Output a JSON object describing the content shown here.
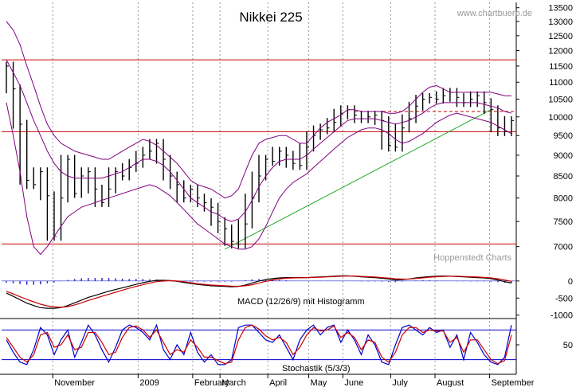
{
  "chart_data": [
    {
      "type": "line",
      "title": "Nikkei 225",
      "watermark": "www.chartbuero.de",
      "source": "Hoppenstedt Charts",
      "yscale": "log",
      "ylim": [
        6550,
        13700
      ],
      "y_ticks": [
        7000,
        7500,
        8000,
        8500,
        9000,
        9500,
        10000,
        10500,
        11000,
        11500,
        12000,
        12500,
        13000,
        13500
      ],
      "y_tick_labels": [
        "7000",
        "7500",
        "8000",
        "8500",
        "9000",
        "9500",
        "10000",
        "10500",
        "11000",
        "11500",
        "12000",
        "12500",
        "13000",
        "13500"
      ],
      "horizontal_lines": [
        {
          "value": 11700,
          "color": "#cc0000",
          "style": "solid"
        },
        {
          "value": 9600,
          "color": "#cc0000",
          "style": "solid"
        },
        {
          "value": 7050,
          "color": "#cc0000",
          "style": "solid"
        },
        {
          "value": 10150,
          "color": "#cc0000",
          "style": "dashed",
          "start_week": 51
        }
      ],
      "trendline": {
        "color": "#22aa22",
        "from": {
          "week": 32,
          "value": 6950
        },
        "to": {
          "week": 71,
          "value": 10200
        }
      },
      "series": [
        {
          "kind": "price-bars",
          "color": "#000000",
          "values": [
            11500,
            10800,
            9800,
            8400,
            8300,
            8600,
            8050,
            7200,
            8000,
            8900,
            8100,
            8500,
            8600,
            8200,
            7900,
            8200,
            8600,
            8500,
            8700,
            8800,
            9000,
            9100,
            9300,
            8900,
            8500,
            8300,
            8000,
            8200,
            8000,
            7900,
            7800,
            7500,
            7350,
            7100,
            7050,
            7450,
            8000,
            8500,
            8900,
            8850,
            9100,
            9000,
            8800,
            8750,
            9200,
            9500,
            9650,
            9700,
            9850,
            10100,
            10200,
            10050,
            9950,
            10000,
            10050,
            9900,
            9250,
            9200,
            9700,
            9950,
            10300,
            10500,
            10550,
            10500,
            10600,
            10700,
            10550,
            10400,
            10500,
            10600,
            10400,
            10200,
            9700,
            9600,
            9900
          ]
        },
        {
          "kind": "bollinger-upper",
          "color": "#800080",
          "values": [
            13000,
            12700,
            12200,
            11500,
            10900,
            10300,
            9800,
            9500,
            9300,
            9200,
            9100,
            9050,
            9000,
            8950,
            8900,
            8900,
            9000,
            9100,
            9200,
            9300,
            9400,
            9350,
            9250,
            9100,
            8950,
            8800,
            8600,
            8400,
            8300,
            8250,
            8200,
            8100,
            8000,
            8050,
            8200,
            8600,
            9000,
            9300,
            9400,
            9450,
            9500,
            9500,
            9400,
            9300,
            9300,
            9500,
            9700,
            9850,
            9950,
            10050,
            10200,
            10200,
            10150,
            10150,
            10150,
            10150,
            10100,
            10100,
            10150,
            10300,
            10500,
            10700,
            10850,
            10900,
            10800,
            10700,
            10700,
            10700,
            10700,
            10700,
            10700,
            10700,
            10650,
            10600,
            10600
          ]
        },
        {
          "kind": "bollinger-middle",
          "color": "#800080",
          "values": [
            11700,
            11300,
            10900,
            10400,
            9900,
            9500,
            9100,
            8800,
            8600,
            8500,
            8450,
            8450,
            8450,
            8450,
            8450,
            8500,
            8550,
            8600,
            8700,
            8800,
            8900,
            8900,
            8850,
            8750,
            8600,
            8400,
            8200,
            8000,
            7900,
            7800,
            7700,
            7650,
            7550,
            7500,
            7550,
            7700,
            7950,
            8250,
            8500,
            8700,
            8850,
            8900,
            8900,
            8900,
            9000,
            9150,
            9300,
            9450,
            9600,
            9750,
            9900,
            9950,
            9950,
            9950,
            9950,
            9900,
            9850,
            9800,
            9850,
            9900,
            10000,
            10100,
            10250,
            10350,
            10400,
            10400,
            10400,
            10400,
            10400,
            10400,
            10350,
            10300,
            10250,
            10150,
            10100
          ]
        },
        {
          "kind": "bollinger-lower",
          "color": "#800080",
          "values": [
            10400,
            9500,
            8600,
            7600,
            7000,
            6850,
            7000,
            7200,
            7400,
            7600,
            7700,
            7800,
            7850,
            7900,
            7950,
            8000,
            8050,
            8100,
            8150,
            8200,
            8250,
            8300,
            8250,
            8150,
            8050,
            7900,
            7750,
            7600,
            7450,
            7350,
            7250,
            7150,
            7050,
            7000,
            6950,
            6950,
            7000,
            7150,
            7400,
            7700,
            8000,
            8200,
            8350,
            8450,
            8550,
            8700,
            8850,
            9000,
            9150,
            9300,
            9450,
            9550,
            9650,
            9700,
            9700,
            9650,
            9550,
            9400,
            9300,
            9350,
            9450,
            9550,
            9700,
            9850,
            9950,
            10050,
            10100,
            10050,
            10000,
            9950,
            9900,
            9850,
            9750,
            9650,
            9550
          ]
        }
      ]
    },
    {
      "type": "line",
      "title": "MACD (12/26/9) mit Histogramm",
      "ylim": [
        -1100,
        300
      ],
      "y_ticks": [
        0,
        -500,
        -1000
      ],
      "y_tick_labels": [
        "0",
        "-500",
        "-1000"
      ],
      "series": [
        {
          "kind": "macd",
          "color": "#000000",
          "values": [
            -350,
            -450,
            -550,
            -650,
            -720,
            -780,
            -800,
            -800,
            -780,
            -720,
            -640,
            -560,
            -480,
            -420,
            -360,
            -300,
            -250,
            -200,
            -150,
            -100,
            -50,
            -10,
            20,
            20,
            10,
            -10,
            -40,
            -70,
            -100,
            -120,
            -140,
            -150,
            -160,
            -170,
            -160,
            -120,
            -60,
            0,
            40,
            70,
            90,
            100,
            100,
            100,
            100,
            110,
            120,
            130,
            140,
            150,
            150,
            140,
            120,
            110,
            100,
            80,
            60,
            30,
            40,
            60,
            90,
            110,
            130,
            140,
            145,
            140,
            130,
            120,
            110,
            100,
            90,
            70,
            30,
            -20,
            -60
          ]
        },
        {
          "kind": "signal",
          "color": "#cc0000",
          "values": [
            -300,
            -380,
            -460,
            -540,
            -610,
            -680,
            -730,
            -760,
            -770,
            -750,
            -700,
            -640,
            -570,
            -510,
            -450,
            -390,
            -330,
            -270,
            -210,
            -160,
            -110,
            -60,
            -20,
            0,
            10,
            0,
            -20,
            -50,
            -80,
            -100,
            -120,
            -130,
            -140,
            -150,
            -155,
            -140,
            -110,
            -60,
            -10,
            30,
            60,
            80,
            90,
            95,
            100,
            105,
            110,
            120,
            130,
            140,
            145,
            145,
            135,
            125,
            115,
            100,
            85,
            65,
            55,
            60,
            75,
            90,
            110,
            125,
            135,
            140,
            138,
            132,
            125,
            115,
            105,
            90,
            65,
            30,
            -10
          ]
        },
        {
          "kind": "histogram",
          "color": "#2f2fcc",
          "values": [
            -50,
            -70,
            -90,
            -110,
            -110,
            -100,
            -70,
            -40,
            -10,
            30,
            60,
            80,
            90,
            90,
            90,
            90,
            80,
            70,
            60,
            60,
            60,
            50,
            40,
            20,
            0,
            -10,
            -20,
            -20,
            -20,
            -20,
            -20,
            -20,
            -20,
            -20,
            -5,
            20,
            50,
            60,
            50,
            40,
            30,
            20,
            10,
            5,
            0,
            5,
            10,
            10,
            10,
            10,
            5,
            -5,
            -15,
            -15,
            -15,
            -20,
            -25,
            -35,
            -15,
            0,
            15,
            20,
            20,
            15,
            10,
            0,
            -8,
            -12,
            -15,
            -15,
            -15,
            -20,
            -35,
            -50,
            -50
          ]
        }
      ]
    },
    {
      "type": "line",
      "title": "Stochastik (5/3/3)",
      "ylim": [
        0,
        100
      ],
      "y_ticks": [
        50
      ],
      "y_tick_labels": [
        "50"
      ],
      "horizontal_lines": [
        {
          "value": 80,
          "color": "#0000cc"
        },
        {
          "value": 20,
          "color": "#0000cc"
        }
      ],
      "series": [
        {
          "kind": "stoch-k",
          "color": "#0000cc",
          "values": [
            60,
            35,
            15,
            10,
            40,
            85,
            70,
            30,
            60,
            80,
            25,
            55,
            90,
            70,
            40,
            15,
            45,
            80,
            90,
            85,
            75,
            60,
            90,
            40,
            20,
            50,
            30,
            75,
            35,
            15,
            30,
            10,
            10,
            20,
            85,
            90,
            90,
            75,
            60,
            55,
            70,
            45,
            20,
            60,
            80,
            90,
            70,
            85,
            90,
            55,
            80,
            60,
            30,
            70,
            50,
            15,
            10,
            50,
            85,
            90,
            80,
            70,
            85,
            75,
            80,
            45,
            70,
            20,
            75,
            55,
            30,
            15,
            10,
            25,
            90
          ]
        },
        {
          "kind": "stoch-d",
          "color": "#cc0000",
          "values": [
            65,
            45,
            25,
            15,
            30,
            70,
            75,
            45,
            50,
            70,
            40,
            45,
            75,
            75,
            55,
            30,
            35,
            65,
            85,
            88,
            80,
            65,
            80,
            55,
            30,
            40,
            35,
            60,
            45,
            25,
            25,
            18,
            12,
            15,
            60,
            85,
            90,
            82,
            68,
            60,
            65,
            55,
            30,
            45,
            70,
            85,
            78,
            80,
            88,
            65,
            75,
            65,
            40,
            60,
            55,
            25,
            15,
            35,
            70,
            85,
            85,
            75,
            80,
            78,
            78,
            55,
            65,
            35,
            60,
            60,
            40,
            20,
            12,
            18,
            70
          ]
        }
      ]
    },
    {
      "type": "axis",
      "months": [
        {
          "label": "November",
          "week": 7.5
        },
        {
          "label": "2009",
          "week": 20
        },
        {
          "label": "February",
          "week": 28
        },
        {
          "label": "March",
          "week": 32
        },
        {
          "label": "April",
          "week": 39
        },
        {
          "label": "May",
          "week": 45
        },
        {
          "label": "June",
          "week": 50
        },
        {
          "label": "July",
          "week": 57
        },
        {
          "label": "August",
          "week": 63.5
        },
        {
          "label": "September",
          "week": 71.5
        }
      ]
    }
  ]
}
